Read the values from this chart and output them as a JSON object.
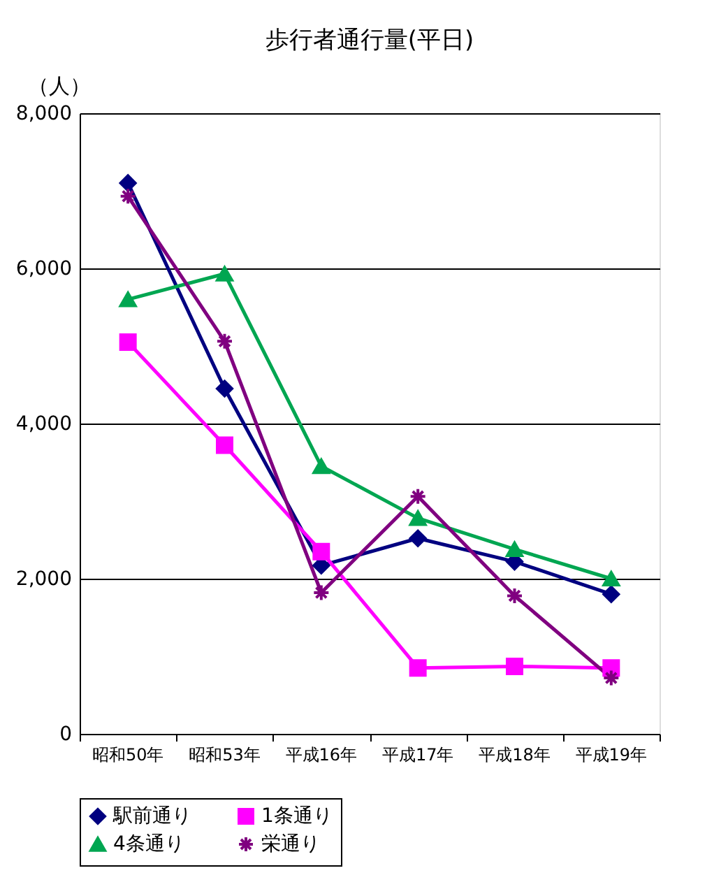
{
  "chart_data": {
    "type": "line",
    "title": "歩行者通行量(平日)",
    "ylabel": "（人）",
    "categories": [
      "昭和50年",
      "昭和53年",
      "平成16年",
      "平成17年",
      "平成18年",
      "平成19年"
    ],
    "series": [
      {
        "name": "駅前通り",
        "color": "#000080",
        "marker": "diamond",
        "values": [
          7100,
          4450,
          2170,
          2520,
          2220,
          1800
        ]
      },
      {
        "name": "1条通り",
        "color": "#ff00ff",
        "marker": "square",
        "values": [
          5050,
          3720,
          2350,
          850,
          870,
          850
        ]
      },
      {
        "name": "4条通り",
        "color": "#00a651",
        "marker": "triangle",
        "values": [
          5600,
          5930,
          3450,
          2780,
          2380,
          2000
        ]
      },
      {
        "name": "栄通り",
        "color": "#800080",
        "marker": "cross",
        "values": [
          6930,
          5060,
          1820,
          3060,
          1780,
          720
        ]
      }
    ],
    "ylim": [
      0,
      8000
    ],
    "yticks": [
      0,
      {
        "value": 2000,
        "label": "2,000"
      },
      {
        "value": 4000,
        "label": "4,000"
      },
      {
        "value": 6000,
        "label": "6,000"
      },
      {
        "value": 8000,
        "label": "8,000"
      }
    ],
    "grid": "y",
    "legend": "bottom",
    "line_style": "solid"
  }
}
